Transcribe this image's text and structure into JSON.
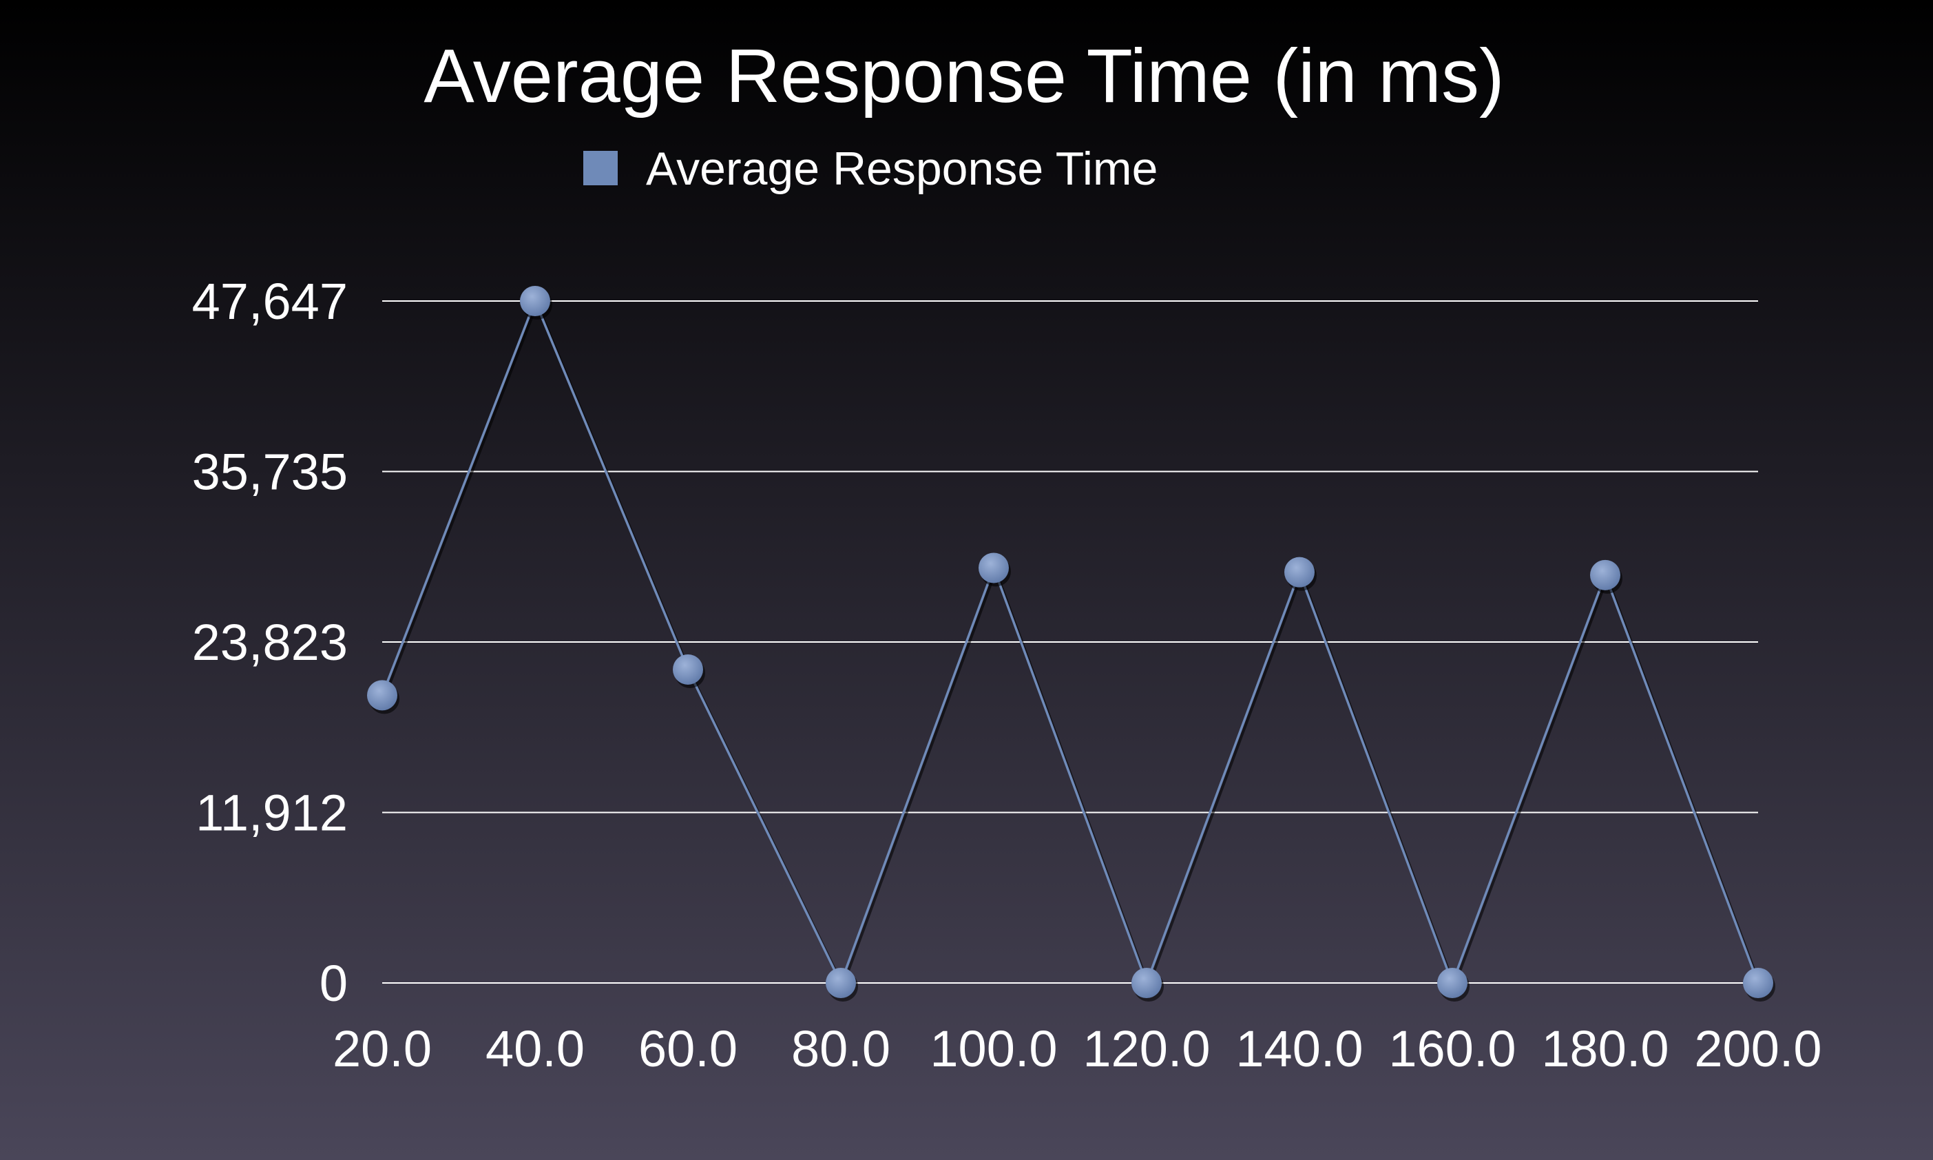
{
  "chart_data": {
    "type": "line",
    "title": "Average Response Time (in ms)",
    "xlabel": "",
    "ylabel": "",
    "x": [
      20,
      40,
      60,
      80,
      100,
      120,
      140,
      160,
      180,
      200
    ],
    "x_tick_labels": [
      "20.0",
      "40.0",
      "60.0",
      "80.0",
      "100.0",
      "120.0",
      "140.0",
      "160.0",
      "180.0",
      "200.0"
    ],
    "y_ticks": [
      0,
      11912,
      23823,
      35735,
      47647
    ],
    "y_tick_labels": [
      "0",
      "11,912",
      "23,823",
      "35,735",
      "47,647"
    ],
    "ylim": [
      0,
      47647
    ],
    "grid": true,
    "legend_position": "top-center",
    "series": [
      {
        "name": "Average Response Time",
        "color": "#6f8ab8",
        "values": [
          20100,
          47647,
          21900,
          0,
          29000,
          0,
          28700,
          0,
          28500,
          0
        ]
      }
    ]
  }
}
